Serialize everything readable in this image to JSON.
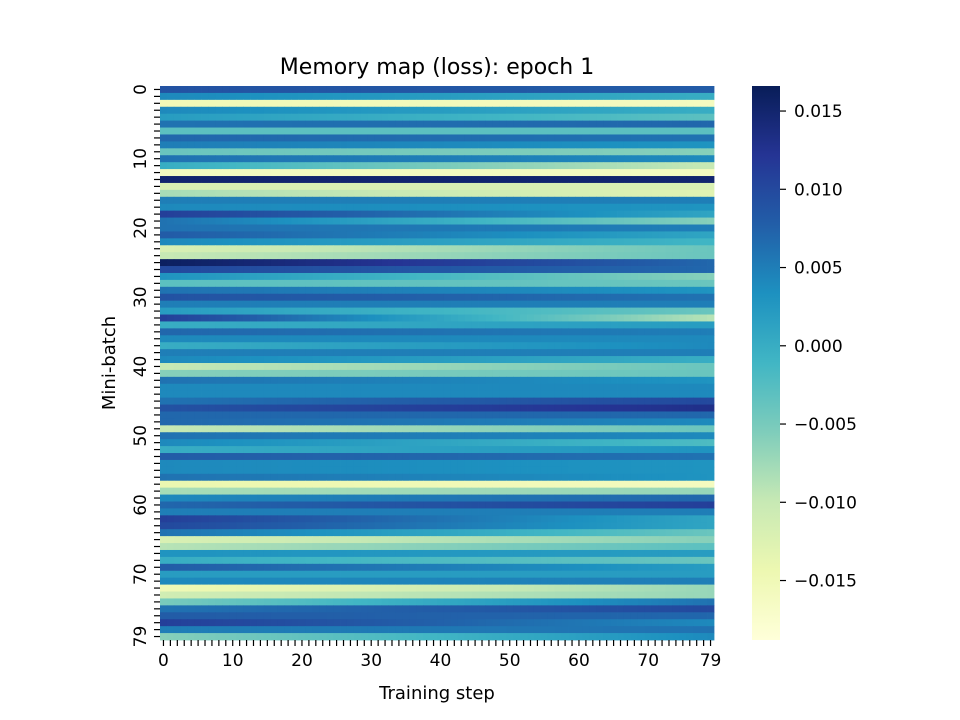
{
  "chart_data": {
    "type": "heatmap",
    "title": "Memory map (loss): epoch 1",
    "xlabel": "Training step",
    "ylabel": "Mini-batch",
    "rows": 80,
    "cols": 80,
    "x_tick_labels": [
      "0",
      "10",
      "20",
      "30",
      "40",
      "50",
      "60",
      "70",
      "79"
    ],
    "y_tick_labels": [
      "0",
      "10",
      "20",
      "30",
      "40",
      "50",
      "60",
      "70",
      "79"
    ],
    "colormap": "YlGnBu",
    "colormap_stops": [
      "#ffffd9",
      "#edf8b1",
      "#c7e9b4",
      "#7fcdbb",
      "#41b6c4",
      "#1d91c0",
      "#225ea8",
      "#253494",
      "#081d58"
    ],
    "colorbar": {
      "vmin": -0.0188,
      "vmax": 0.0166,
      "tick_values": [
        -0.015,
        -0.01,
        -0.005,
        0.0,
        0.005,
        0.01,
        0.015
      ],
      "tick_labels": [
        "−0.015",
        "−0.010",
        "−0.005",
        "0.000",
        "0.005",
        "0.010",
        "0.015"
      ]
    },
    "row_start_values": [
      0.009,
      0.004,
      -0.015,
      0.004,
      0.002,
      0.006,
      -0.003,
      0.007,
      0.005,
      -0.004,
      0.006,
      0.0,
      -0.016,
      0.015,
      -0.012,
      -0.008,
      0.005,
      0.004,
      0.011,
      0.006,
      0.006,
      0.008,
      0.004,
      -0.012,
      -0.01,
      0.016,
      0.01,
      0.003,
      -0.003,
      0.006,
      0.009,
      0.005,
      0.002,
      0.011,
      0.0,
      0.007,
      0.004,
      0.0,
      0.005,
      0.004,
      -0.01,
      -0.006,
      0.006,
      0.004,
      0.004,
      0.006,
      0.009,
      0.007,
      0.007,
      -0.01,
      0.006,
      0.004,
      0.0,
      0.008,
      0.004,
      0.004,
      0.006,
      -0.014,
      -0.008,
      0.004,
      0.007,
      0.005,
      0.011,
      0.01,
      0.006,
      -0.012,
      -0.009,
      0.003,
      0.0,
      0.008,
      0.002,
      0.004,
      -0.015,
      -0.011,
      -0.005,
      0.006,
      0.008,
      0.011,
      0.005,
      -0.006
    ],
    "row_end_values": [
      0.008,
      0.0,
      -0.016,
      0.0,
      -0.003,
      0.007,
      -0.003,
      0.006,
      0.003,
      -0.006,
      0.004,
      -0.01,
      -0.016,
      0.015,
      -0.012,
      -0.013,
      0.005,
      0.003,
      0.001,
      -0.006,
      0.005,
      0.001,
      -0.001,
      -0.004,
      -0.004,
      0.007,
      0.007,
      -0.006,
      -0.004,
      0.003,
      0.006,
      0.005,
      -0.004,
      -0.009,
      0.002,
      0.005,
      0.004,
      0.004,
      0.005,
      0.0,
      -0.004,
      -0.004,
      0.003,
      0.004,
      0.004,
      0.01,
      0.013,
      0.007,
      0.004,
      -0.004,
      0.004,
      -0.002,
      0.003,
      0.006,
      0.003,
      0.003,
      0.003,
      -0.016,
      -0.007,
      0.007,
      0.011,
      0.005,
      0.001,
      0.001,
      -0.004,
      -0.006,
      -0.003,
      0.002,
      -0.004,
      0.002,
      0.002,
      0.005,
      -0.007,
      -0.007,
      0.006,
      0.01,
      0.007,
      0.004,
      0.006,
      0.004
    ]
  }
}
